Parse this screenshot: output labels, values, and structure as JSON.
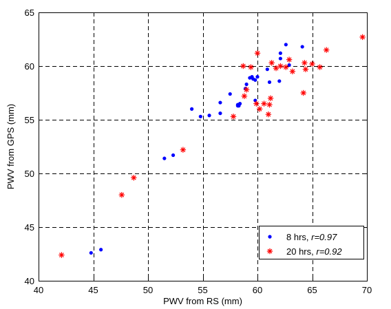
{
  "chart_data": {
    "type": "scatter",
    "title": "",
    "xlabel": "PWV from RS (mm)",
    "ylabel": "PWV from GPS (mm)",
    "xlim": [
      40,
      70
    ],
    "ylim": [
      40,
      65
    ],
    "xticks": [
      40,
      45,
      50,
      55,
      60,
      65,
      70
    ],
    "yticks": [
      40,
      45,
      50,
      55,
      60,
      65
    ],
    "grid": true,
    "grid_style": "dashed",
    "legend_position": "bottom-right",
    "series": [
      {
        "name": "8 hrs",
        "stat_label": "r=0.97",
        "marker": "dot",
        "color": "#0000ff",
        "x": [
          44.8,
          45.7,
          51.5,
          52.3,
          54.0,
          54.8,
          55.6,
          56.6,
          56.6,
          57.5,
          58.2,
          58.3,
          58.4,
          58.9,
          59.0,
          59.3,
          59.5,
          59.6,
          59.8,
          59.8,
          60.0,
          60.9,
          61.1,
          62.0,
          62.1,
          62.1,
          62.6,
          62.9,
          64.1,
          58.2
        ],
        "y": [
          42.6,
          42.9,
          51.4,
          51.7,
          56.0,
          55.3,
          55.4,
          55.6,
          56.6,
          57.4,
          56.4,
          56.3,
          56.5,
          57.9,
          58.3,
          58.9,
          59.0,
          58.8,
          56.8,
          58.7,
          59.0,
          59.7,
          58.5,
          58.6,
          61.2,
          60.7,
          62.0,
          60.1,
          61.8,
          56.3
        ]
      },
      {
        "name": "20 hrs",
        "stat_label": "r=0.92",
        "marker": "asterisk",
        "color": "#ff0000",
        "x": [
          42.1,
          47.6,
          48.7,
          53.2,
          57.8,
          58.7,
          58.8,
          59.0,
          59.4,
          59.9,
          60.0,
          60.2,
          60.6,
          61.0,
          61.1,
          61.2,
          61.3,
          61.7,
          62.1,
          62.6,
          62.9,
          63.2,
          64.2,
          64.3,
          64.4,
          65.0,
          65.7,
          66.3,
          69.6
        ],
        "y": [
          42.4,
          48.0,
          49.6,
          52.2,
          55.3,
          60.0,
          57.2,
          57.8,
          59.9,
          56.5,
          61.2,
          56.0,
          56.5,
          55.5,
          56.4,
          57.0,
          60.3,
          59.8,
          60.0,
          59.9,
          60.6,
          59.5,
          57.5,
          60.3,
          59.7,
          60.2,
          59.9,
          61.5,
          62.7
        ]
      }
    ]
  }
}
